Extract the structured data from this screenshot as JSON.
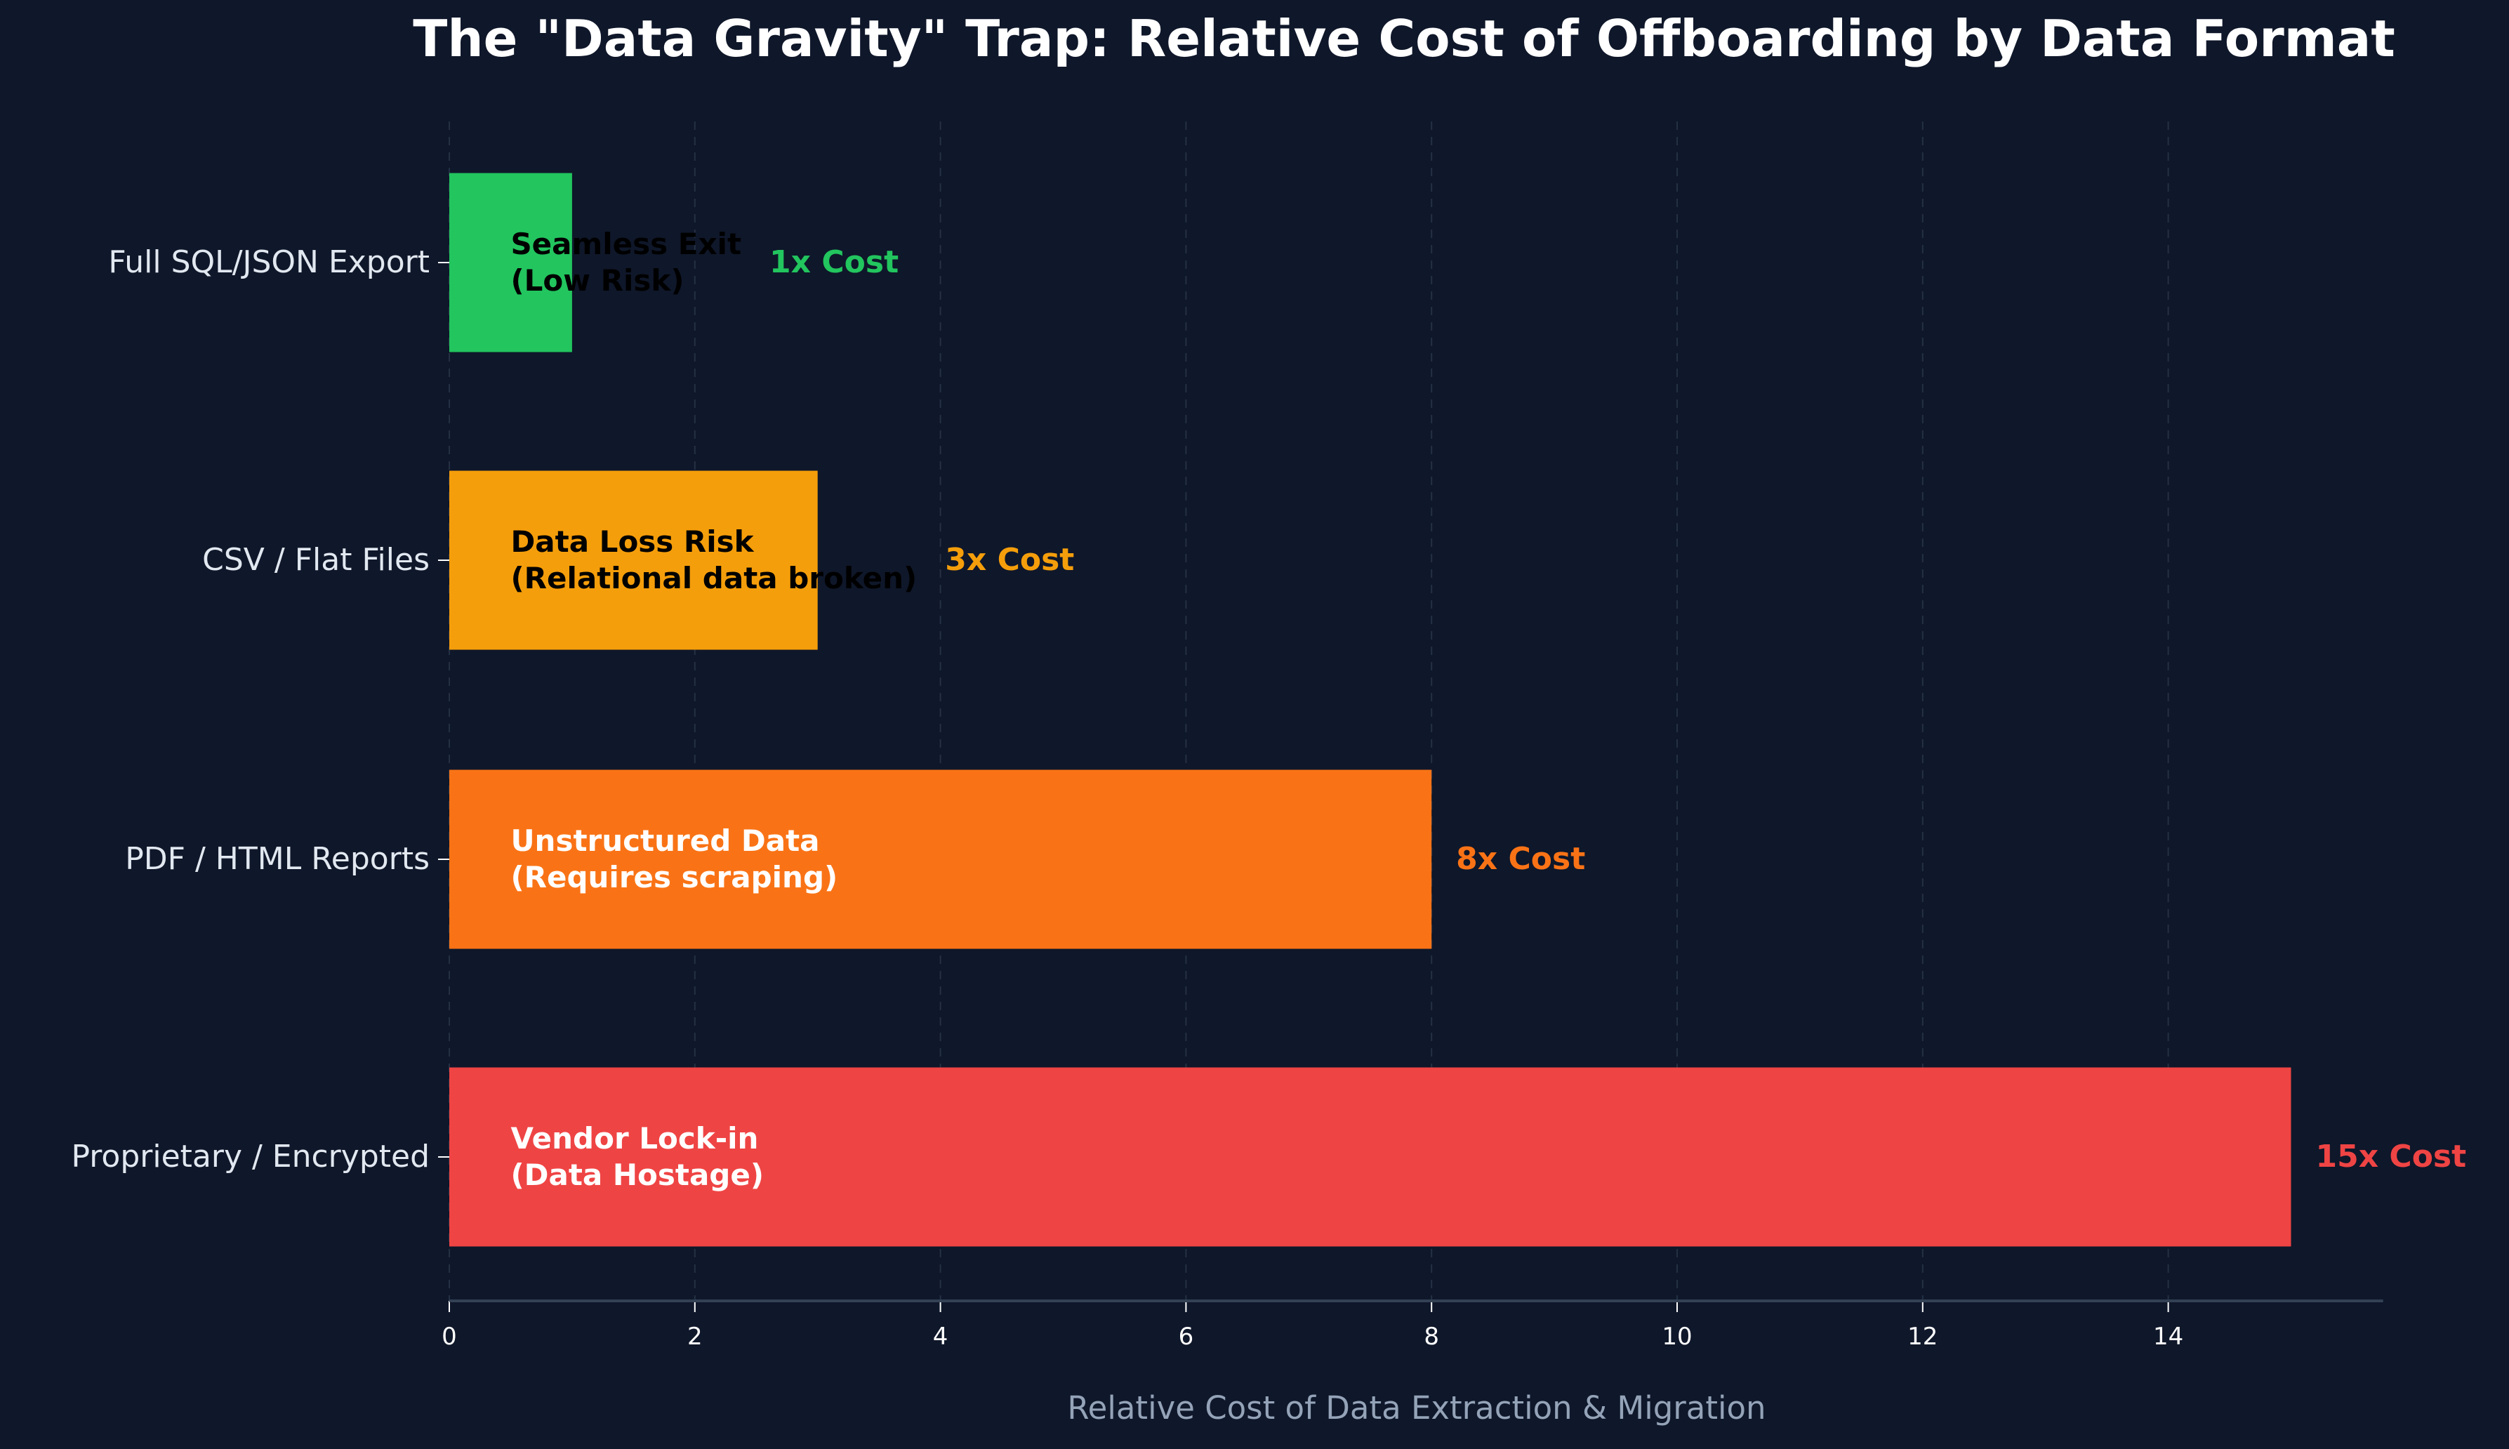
{
  "chart_data": {
    "type": "bar",
    "orientation": "horizontal",
    "title": "The \"Data Gravity\" Trap: Relative Cost of Offboarding by Data Format",
    "xlabel": "Relative Cost of Data Extraction & Migration",
    "ylabel": "",
    "xlim": [
      0,
      15.75
    ],
    "xticks": [
      0,
      2,
      4,
      6,
      8,
      10,
      12,
      14
    ],
    "grid": "x-dashed",
    "categories": [
      "Full SQL/JSON Export",
      "CSV / Flat Files",
      "PDF / HTML Reports",
      "Proprietary / Encrypted"
    ],
    "values": [
      1,
      3,
      8,
      15
    ],
    "colors": [
      "#22c55e",
      "#f59e0b",
      "#f97316",
      "#ef4444"
    ],
    "value_labels": [
      "1x Cost",
      "3x Cost",
      "8x Cost",
      "15x Cost"
    ],
    "annotations": [
      {
        "line1": "Seamless Exit",
        "line2": "(Low Risk)",
        "color": "#000000"
      },
      {
        "line1": "Data Loss Risk",
        "line2": "(Relational data broken)",
        "color": "#000000"
      },
      {
        "line1": "Unstructured Data",
        "line2": "(Requires scraping)",
        "color": "#ffffff"
      },
      {
        "line1": "Vendor Lock-in",
        "line2": "(Data Hostage)",
        "color": "#ffffff"
      }
    ],
    "background": "#0f172a"
  }
}
